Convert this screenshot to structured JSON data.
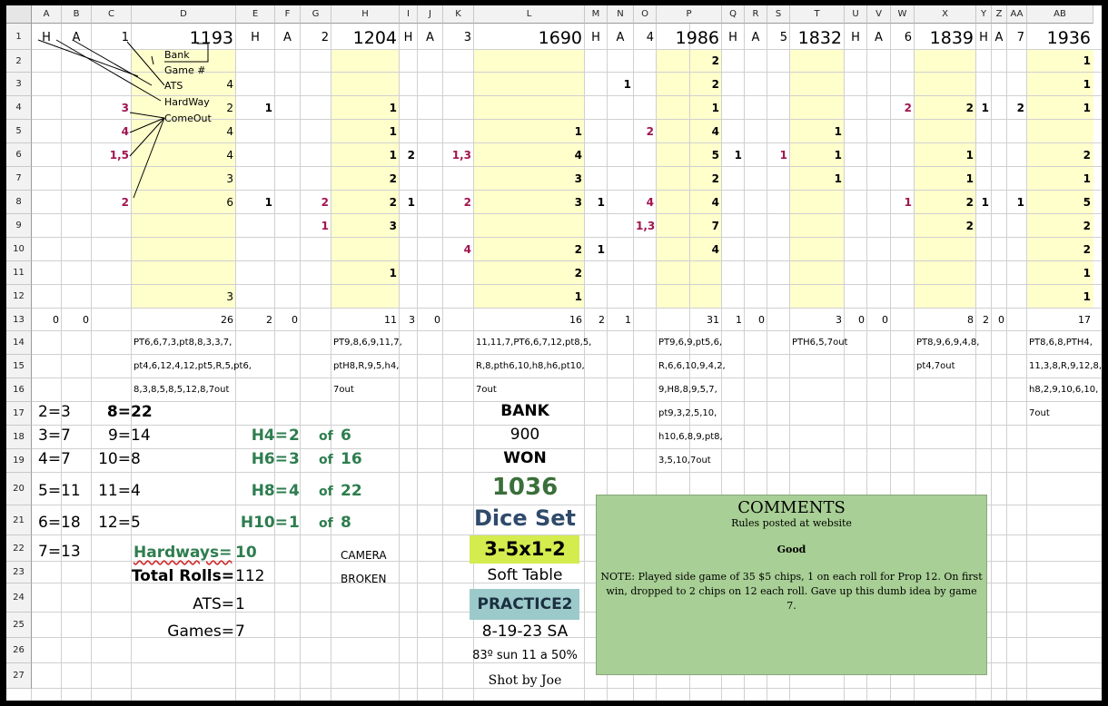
{
  "col_headers": [
    "A",
    "B",
    "C",
    "D",
    "E",
    "F",
    "G",
    "H",
    "I",
    "J",
    "K",
    "L",
    "M",
    "N",
    "O",
    "P",
    "Q",
    "R",
    "S",
    "T",
    "U",
    "V",
    "W",
    "X",
    "Y",
    "Z",
    "AA",
    "AB"
  ],
  "row_headers": [
    "1",
    "2",
    "3",
    "4",
    "5",
    "6",
    "7",
    "8",
    "9",
    "10",
    "11",
    "12",
    "13",
    "14",
    "15",
    "16",
    "17",
    "18",
    "19",
    "20",
    "21",
    "22",
    "23",
    "24",
    "25",
    "26",
    "27"
  ],
  "row1": {
    "A": "H",
    "B": "A",
    "C": "1",
    "D": "1193",
    "E": "H",
    "F": "A",
    "G": "2",
    "H": "1204",
    "I": "H",
    "J": "A",
    "K": "3",
    "L": "1690",
    "M": "H",
    "N": "A",
    "O": "4",
    "P": "1986",
    "Q": "H",
    "R": "A",
    "S": "5",
    "T": "1832",
    "U": "H",
    "V": "A",
    "W": "6",
    "X": "1839",
    "Y": "H",
    "Z": "A",
    "AA": "7",
    "AB": "1936"
  },
  "legend": {
    "bank": "Bank",
    "game": "Game #",
    "ats": "ATS",
    "hardway": "HardWay",
    "comeout": "ComeOut"
  },
  "grid": {
    "D": {
      "3": "4",
      "4": "2",
      "5": "4",
      "6": "4",
      "7": "3",
      "8": "6",
      "12": "3"
    },
    "C": {
      "4": "3",
      "5": "4",
      "6": "1,5",
      "8": "2"
    },
    "E": {
      "4": "1",
      "8": "1"
    },
    "G": {
      "8": "2",
      "9": "1"
    },
    "H": {
      "4": "1",
      "5": "1",
      "6": "1",
      "7": "2",
      "8": "2",
      "9": "3",
      "11": "1"
    },
    "I": {
      "6": "2",
      "8": "1"
    },
    "K": {
      "6": "1,3",
      "8": "2",
      "10": "4"
    },
    "L": {
      "5": "1",
      "6": "4",
      "7": "3",
      "8": "3",
      "10": "2",
      "11": "2",
      "12": "1"
    },
    "M": {
      "8": "1",
      "10": "1"
    },
    "N": {
      "3": "1"
    },
    "O": {
      "5": "2",
      "8": "4",
      "9": "1,3"
    },
    "P": {
      "2": "2",
      "3": "2",
      "4": "1",
      "5": "4",
      "6": "5",
      "7": "2",
      "8": "4",
      "9": "7",
      "10": "4"
    },
    "Q": {
      "6": "1"
    },
    "S": {
      "6": "1"
    },
    "T": {
      "5": "1",
      "6": "1",
      "7": "1"
    },
    "W": {
      "4": "2",
      "8": "1"
    },
    "X": {
      "4": "2",
      "6": "1",
      "7": "1",
      "8": "2",
      "9": "2"
    },
    "Y": {
      "4": "1",
      "8": "1"
    },
    "AA": {
      "4": "2",
      "8": "1"
    },
    "AB": {
      "2": "1",
      "3": "1",
      "4": "1",
      "6": "2",
      "7": "1",
      "8": "5",
      "9": "2",
      "10": "2",
      "11": "1",
      "12": "1"
    }
  },
  "row13": {
    "A": "0",
    "B": "0",
    "D": "26",
    "E": "2",
    "F": "0",
    "H": "11",
    "I": "3",
    "J": "0",
    "L": "16",
    "M": "2",
    "N": "1",
    "P": "31",
    "Q": "1",
    "R": "0",
    "T": "3",
    "U": "0",
    "V": "0",
    "X": "8",
    "Y": "2",
    "Z": "0",
    "AB": "17"
  },
  "rolls": {
    "D": [
      "PT6,6,7,3,pt8,8,3,3,7,",
      "pt4,6,12,4,12,pt5,R,5,pt6,",
      "8,3,8,5,8,5,12,8,7out"
    ],
    "H": [
      "PT9,8,6,9,11,7,",
      "ptH8,R,9,5,h4,",
      "7out"
    ],
    "L": [
      "11,11,7,PT6,6,7,12,pt8,5,",
      "R,8,pth6,10,h8,h6,pt10,",
      "7out"
    ],
    "P": [
      "PT9,6,9,pt5,6,",
      "R,6,6,10,9,4,2,",
      "9,H8,8,9,5,7,",
      "pt9,3,2,5,10,",
      "h10,6,8,9,pt8,",
      "3,5,10,7out"
    ],
    "T": [
      "PTH6,5,7out"
    ],
    "X": [
      "PT8,9,6,9,4,8,",
      "pt4,7out"
    ],
    "AB": [
      "PT8,6,8,PTH4,",
      "11,3,8,R,9,12,8,",
      "h8,2,9,10,6,10,",
      "7out"
    ]
  },
  "stats": {
    "s2": "2=3",
    "s3": "3=7",
    "s4": "4=7",
    "s5": "5=11",
    "s6": "6=18",
    "s7": "7=13",
    "s8k": "8=",
    "s8v": "22",
    "s9k": "9=",
    "s9v": "14",
    "s10k": "10=",
    "s10v": "8",
    "s11k": "11=",
    "s11v": "4",
    "s12k": "12=",
    "s12v": "5"
  },
  "hard": {
    "h4k": "H4=",
    "h4v": "2",
    "h4of": "of",
    "h4t": "6",
    "h6k": "H6=",
    "h6v": "3",
    "h6of": "of",
    "h6t": "16",
    "h8k": "H8=",
    "h8v": "4",
    "h8of": "of",
    "h8t": "22",
    "h10k": "H10=",
    "h10v": "1",
    "h10of": "of",
    "h10t": "8"
  },
  "totals": {
    "hardways_k": "Hardways=",
    "hardways_v": "10",
    "total_k": "Total Rolls=",
    "total_v": "112",
    "ats_k": "ATS=",
    "ats_v": "1",
    "games_k": "Games=",
    "games_v": "7"
  },
  "camera": {
    "line1": "CAMERA",
    "line2": "BROKEN"
  },
  "bank": {
    "label": "BANK",
    "value": "900",
    "won_label": "WON",
    "won_value": "1036",
    "dice_label": "Dice Set",
    "dice_value": "3-5x1-2",
    "table": "Soft Table",
    "practice": "PRACTICE2",
    "date": "8-19-23 SA",
    "weather": "83º sun 11 a 50%",
    "shot": "Shot by Joe"
  },
  "comments": {
    "title": "COMMENTS",
    "rules": "Rules posted at website",
    "good": "Good",
    "note": "NOTE: Played side game of 35 $5 chips, 1 on each roll for Prop 12. On first win, dropped to 2 chips on 12 each roll. Gave up this dumb idea by game 7."
  },
  "colors": {
    "yellow": "#ffffcc",
    "comments_bg": "#a8cf95",
    "dice_bg": "#d4ec4e",
    "practice_bg": "#9cc9c9",
    "green_text": "#2e7d4f",
    "won_green": "#3a6f3a",
    "dice_blue": "#2f4a6b",
    "maroon": "#a0144f"
  }
}
